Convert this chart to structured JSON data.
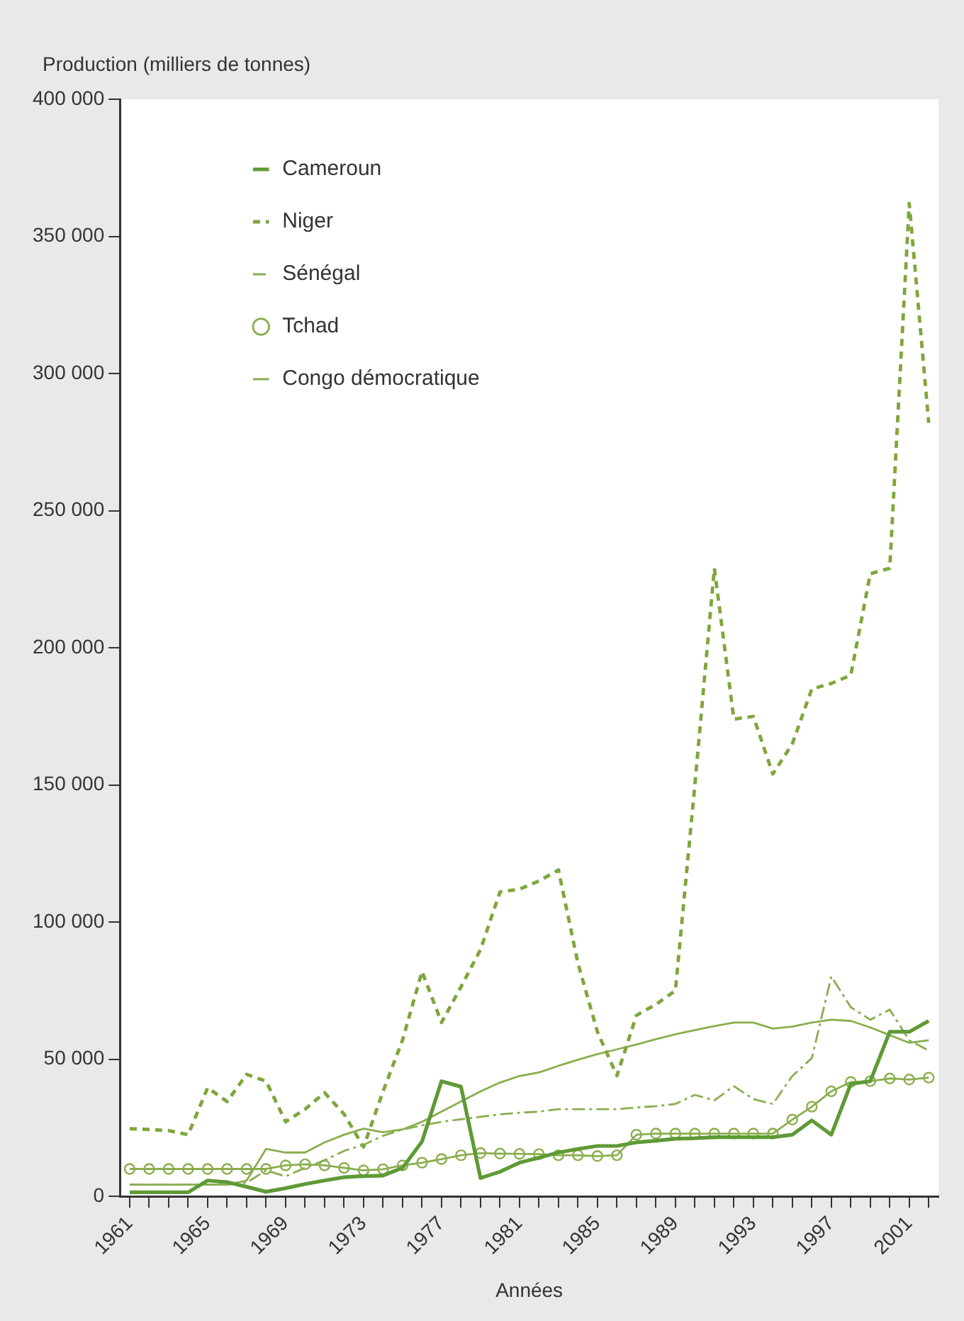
{
  "chart_data": {
    "type": "line",
    "ylabel": "Production (milliers de tonnes)",
    "xlabel": "Années",
    "categories": [
      "1961",
      null,
      null,
      null,
      "1965",
      null,
      null,
      null,
      "1969",
      null,
      null,
      null,
      "1973",
      null,
      null,
      null,
      "1977",
      null,
      null,
      null,
      "1981",
      null,
      null,
      null,
      "1985",
      null,
      null,
      null,
      "1989",
      null,
      null,
      null,
      "1993",
      null,
      null,
      null,
      "1997",
      null,
      null,
      null,
      "2001",
      null
    ],
    "ylim": [
      0,
      400000
    ],
    "yticks": [
      {
        "value": 0,
        "label": "0"
      },
      {
        "value": 50000,
        "label": "50 000"
      },
      {
        "value": 100000,
        "label": "100 000"
      },
      {
        "value": 150000,
        "label": "150 000"
      },
      {
        "value": 200000,
        "label": "200 000"
      },
      {
        "value": 250000,
        "label": "250 000"
      },
      {
        "value": 300000,
        "label": "300 000"
      },
      {
        "value": 350000,
        "label": "350 000"
      },
      {
        "value": 400000,
        "label": "400 000"
      }
    ],
    "legend": "top left",
    "grid": false,
    "series": [
      {
        "name": "Cameroun",
        "color": "#5e9a35",
        "line_style": "solid",
        "marker": "none",
        "values": [
          1500,
          1500,
          1500,
          1500,
          5800,
          5200,
          3500,
          1700,
          3000,
          4500,
          5800,
          7000,
          7400,
          7600,
          10400,
          20000,
          42000,
          40000,
          6700,
          9000,
          12300,
          14100,
          16000,
          17300,
          18400,
          18400,
          19700,
          20300,
          21000,
          21200,
          21600,
          21600,
          21600,
          21600,
          22500,
          27700,
          22500,
          41000,
          42000,
          60000,
          60000,
          64000
        ]
      },
      {
        "name": "Niger",
        "color": "#7fa63c",
        "line_style": "dotted",
        "marker": "none",
        "values": [
          24700,
          24400,
          24000,
          22500,
          39600,
          34600,
          44500,
          42000,
          27200,
          31800,
          37800,
          30000,
          18000,
          38300,
          57000,
          82000,
          63400,
          76400,
          90000,
          111000,
          112000,
          115000,
          119000,
          85000,
          60000,
          44000,
          66000,
          70000,
          75000,
          150000,
          229000,
          174000,
          175000,
          154000,
          165000,
          185000,
          187000,
          190000,
          227000,
          229000,
          362000,
          282000
        ]
      },
      {
        "name": "Sénégal",
        "color": "#8aae4e",
        "line_style": "dashed",
        "marker": "none",
        "values": [
          4300,
          4300,
          4300,
          4300,
          4300,
          4300,
          5000,
          9500,
          7300,
          10400,
          13200,
          16600,
          18800,
          22100,
          24400,
          25900,
          27200,
          28100,
          29000,
          29900,
          30500,
          30900,
          31800,
          31800,
          31800,
          31800,
          32400,
          32900,
          33700,
          37000,
          35000,
          40200,
          35500,
          33700,
          43900,
          50400,
          80200,
          69000,
          64400,
          68100,
          56900,
          53200
        ]
      },
      {
        "name": "Tchad",
        "color": "#8aae4e",
        "line_style": "solid",
        "marker": "circle",
        "values": [
          10000,
          10000,
          10000,
          10000,
          10000,
          10000,
          10000,
          10000,
          11300,
          11700,
          11300,
          10400,
          9500,
          9900,
          11300,
          12300,
          13600,
          15000,
          15800,
          15600,
          15500,
          15400,
          15000,
          15000,
          14700,
          15000,
          22500,
          22900,
          22900,
          22900,
          22900,
          22900,
          22900,
          22900,
          28000,
          32700,
          38300,
          41700,
          42000,
          43000,
          42600,
          43300
        ]
      },
      {
        "name": "Congo démocratique",
        "color": "#8aae4e",
        "line_style": "solid",
        "marker": "none",
        "values": [
          4300,
          4300,
          4300,
          4300,
          4300,
          4300,
          5800,
          17300,
          16000,
          16000,
          19700,
          22500,
          24700,
          23400,
          24400,
          27200,
          30900,
          34600,
          38300,
          41500,
          43900,
          45200,
          47600,
          49800,
          51900,
          53600,
          55400,
          57300,
          59100,
          60600,
          62100,
          63400,
          63400,
          61200,
          61900,
          63400,
          64400,
          64000,
          61600,
          58800,
          56000,
          56900
        ]
      }
    ]
  }
}
